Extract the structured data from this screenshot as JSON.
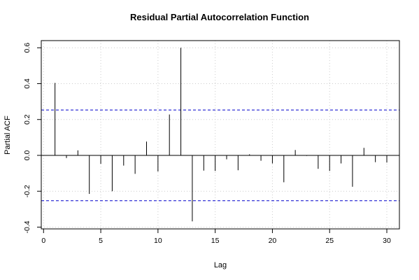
{
  "chart_data": {
    "type": "bar",
    "title": "Residual Partial Autocorrelation Function",
    "xlabel": "Lag",
    "ylabel": "Partial ACF",
    "xlim": [
      -0.2,
      31.1
    ],
    "ylim": [
      -0.41,
      0.64
    ],
    "x_ticks": [
      0,
      5,
      10,
      15,
      20,
      25,
      30
    ],
    "y_ticks": [
      -0.4,
      -0.2,
      0.0,
      0.2,
      0.4,
      0.6
    ],
    "y_tick_labels": [
      "-0.4",
      "-0.2",
      "0.0",
      "0.2",
      "0.4",
      "0.6"
    ],
    "grid": true,
    "lags": [
      1,
      2,
      3,
      4,
      5,
      6,
      7,
      8,
      9,
      10,
      11,
      12,
      13,
      14,
      15,
      16,
      17,
      18,
      19,
      20,
      21,
      22,
      23,
      24,
      25,
      26,
      27,
      28,
      29,
      30
    ],
    "values": [
      0.404,
      -0.015,
      0.028,
      -0.215,
      -0.047,
      -0.2,
      -0.057,
      -0.103,
      0.077,
      -0.09,
      0.228,
      0.6,
      -0.368,
      -0.085,
      -0.087,
      -0.022,
      -0.083,
      0.006,
      -0.03,
      -0.045,
      -0.15,
      0.03,
      -0.003,
      -0.075,
      -0.087,
      -0.045,
      -0.175,
      0.042,
      -0.038,
      -0.04
    ],
    "confidence_bounds": [
      0.253,
      -0.253
    ],
    "colors": {
      "bars": "#000000",
      "bounds": "#0000cc",
      "grid": "#cccccc",
      "axis": "#000000"
    }
  }
}
